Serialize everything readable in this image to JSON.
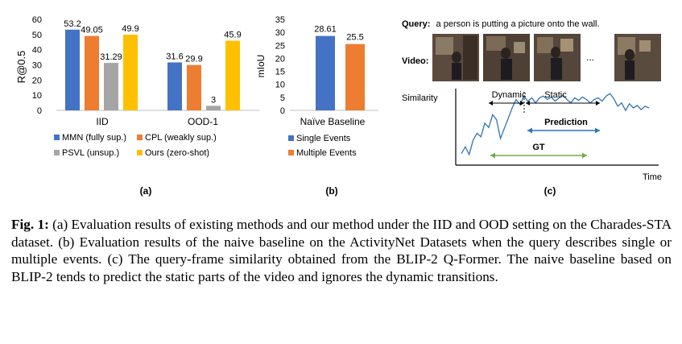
{
  "colors": {
    "blue": "#4472C4",
    "orange": "#ED7D31",
    "gray": "#A5A5A5",
    "yellow": "#FFC000",
    "line": "#2E75B6",
    "pred": "#2E75B6",
    "gt": "#70AD47"
  },
  "chart_data": [
    {
      "type": "bar",
      "panel_label": "(a)",
      "ylabel": "R@0.5",
      "ylim": [
        0,
        60
      ],
      "yticks": [
        "0",
        "10",
        "20",
        "30",
        "40",
        "50",
        "60"
      ],
      "categories": [
        "IID",
        "OOD-1"
      ],
      "series": [
        {
          "name": "MMN (fully sup.)",
          "values": [
            53.2,
            31.6
          ],
          "labels": [
            "53.2",
            "31.6"
          ]
        },
        {
          "name": "CPL (weakly sup.)",
          "values": [
            49.05,
            29.9
          ],
          "labels": [
            "49.05",
            "29.9"
          ]
        },
        {
          "name": "PSVL (unsup.)",
          "values": [
            31.29,
            3
          ],
          "labels": [
            "31.29",
            "3"
          ]
        },
        {
          "name": "Ours (zero-shot)",
          "values": [
            49.9,
            45.9
          ],
          "labels": [
            "49.9",
            "45.9"
          ]
        }
      ],
      "legend_position": "bottom"
    },
    {
      "type": "bar",
      "panel_label": "(b)",
      "ylabel": "mIoU",
      "ylim": [
        0,
        35
      ],
      "yticks": [
        "0",
        "5",
        "10",
        "15",
        "20",
        "25",
        "30",
        "35"
      ],
      "categories": [
        "Naïve Baseline"
      ],
      "series": [
        {
          "name": "Single Events",
          "values": [
            28.61
          ],
          "labels": [
            "28.61"
          ]
        },
        {
          "name": "Multiple Events",
          "values": [
            25.5
          ],
          "labels": [
            "25.5"
          ]
        }
      ],
      "legend_position": "bottom"
    },
    {
      "type": "line",
      "panel_label": "(c)",
      "ylabel": "Similarity",
      "xlabel": "Time",
      "query_label": "Query:",
      "query_text": "a person is putting a picture onto the wall.",
      "video_label": "Video:",
      "ellipsis": "...",
      "annotations": [
        "Dynamic",
        "Static",
        "Prediction",
        "GT"
      ],
      "y": [
        0.06,
        0.14,
        0.05,
        0.22,
        0.3,
        0.26,
        0.42,
        0.37,
        0.52,
        0.46,
        0.24,
        0.36,
        0.48,
        0.6,
        0.7,
        0.64,
        0.74,
        0.68,
        0.72,
        0.66,
        0.72,
        0.74,
        0.7,
        0.73,
        0.68,
        0.72,
        0.75,
        0.7,
        0.66,
        0.72,
        0.69,
        0.73,
        0.7,
        0.66,
        0.7,
        0.72,
        0.68,
        0.74,
        0.77,
        0.71,
        0.62,
        0.66,
        0.57,
        0.65,
        0.6,
        0.63,
        0.58,
        0.62,
        0.6
      ]
    }
  ],
  "caption": {
    "label": "Fig. 1:",
    "text": "(a) Evaluation results of existing methods and our method under the IID and OOD setting on the Charades-STA dataset. (b) Evaluation results of the naive baseline on the ActivityNet Datasets when the query describes single or multiple events. (c) The query-frame similarity obtained from the BLIP-2 Q-Former. The naive baseline based on BLIP-2 tends to predict the static parts of the video and ignores the dynamic transitions."
  }
}
